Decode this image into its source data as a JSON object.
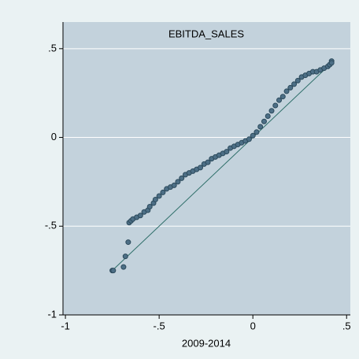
{
  "chart_data": {
    "type": "scatter",
    "title": "EBITDA_SALES",
    "x_label": "2009-2014",
    "x": [
      -0.75,
      -0.745,
      -0.69,
      -0.68,
      -0.665,
      -0.66,
      -0.65,
      -0.64,
      -0.62,
      -0.6,
      -0.58,
      -0.56,
      -0.55,
      -0.53,
      -0.52,
      -0.5,
      -0.48,
      -0.46,
      -0.44,
      -0.42,
      -0.4,
      -0.38,
      -0.36,
      -0.34,
      -0.32,
      -0.3,
      -0.28,
      -0.26,
      -0.24,
      -0.22,
      -0.2,
      -0.18,
      -0.16,
      -0.14,
      -0.12,
      -0.1,
      -0.08,
      -0.06,
      -0.04,
      -0.02,
      0,
      0.02,
      0.04,
      0.06,
      0.08,
      0.1,
      0.12,
      0.14,
      0.16,
      0.18,
      0.2,
      0.22,
      0.24,
      0.26,
      0.28,
      0.3,
      0.32,
      0.34,
      0.36,
      0.38,
      0.4,
      0.41,
      0.42,
      0.42
    ],
    "values": [
      -0.75,
      -0.75,
      -0.73,
      -0.67,
      -0.59,
      -0.48,
      -0.47,
      -0.46,
      -0.45,
      -0.44,
      -0.42,
      -0.41,
      -0.39,
      -0.37,
      -0.35,
      -0.33,
      -0.31,
      -0.29,
      -0.28,
      -0.27,
      -0.25,
      -0.23,
      -0.21,
      -0.2,
      -0.19,
      -0.18,
      -0.17,
      -0.15,
      -0.14,
      -0.12,
      -0.11,
      -0.1,
      -0.09,
      -0.08,
      -0.06,
      -0.05,
      -0.04,
      -0.03,
      -0.02,
      -0.01,
      0.01,
      0.03,
      0.06,
      0.09,
      0.12,
      0.15,
      0.18,
      0.21,
      0.23,
      0.26,
      0.28,
      0.3,
      0.32,
      0.34,
      0.35,
      0.36,
      0.37,
      0.37,
      0.38,
      0.39,
      0.4,
      0.41,
      0.43,
      0.42
    ],
    "color": "#4d6f86",
    "reference_line": {
      "x": [
        -0.75,
        0.42
      ],
      "y": [
        -0.75,
        0.42
      ],
      "color": "#2f6f6a"
    },
    "xlim": [
      -1.013,
      0.52
    ],
    "ylim": [
      -1,
      0.65
    ],
    "xticks": [
      -1,
      {
        "value": -0.5,
        "label": "-.5"
      },
      0,
      {
        "value": 0.5,
        "label": ".5"
      }
    ],
    "yticks": [
      -1,
      {
        "value": -0.5,
        "label": "-.5"
      },
      0,
      {
        "value": 0.5,
        "label": ".5"
      }
    ],
    "grid": true
  }
}
